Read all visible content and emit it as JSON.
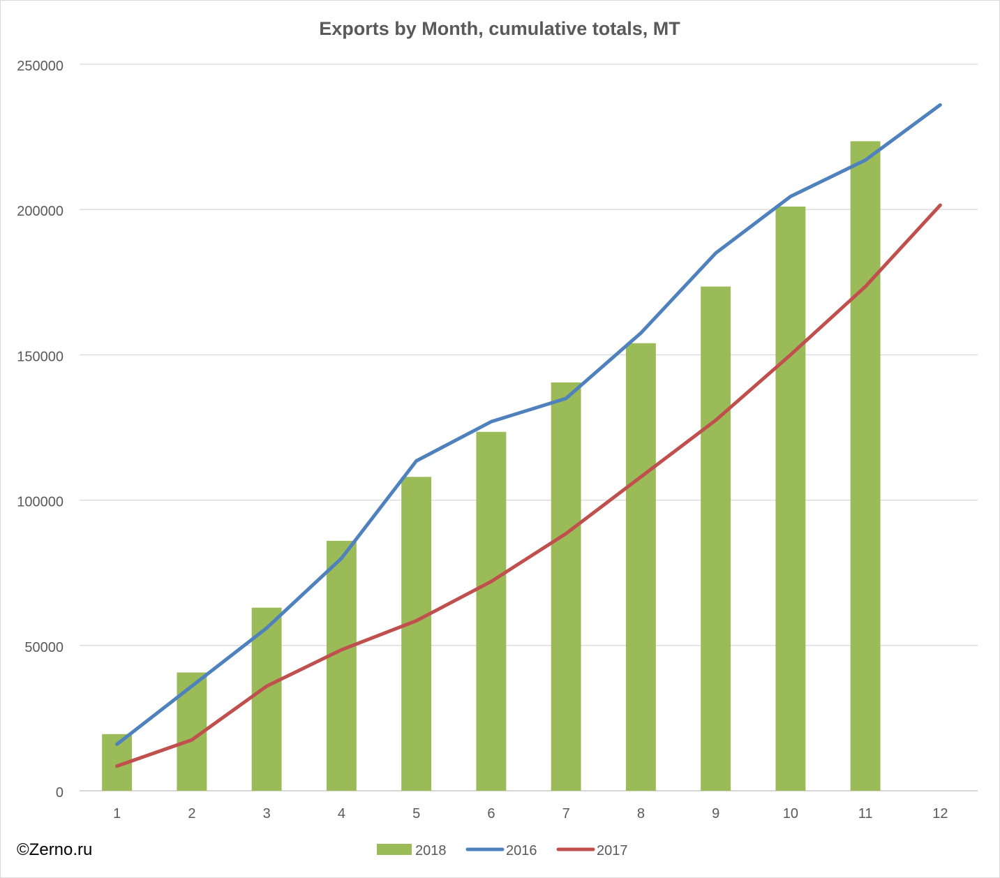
{
  "chart_data": {
    "type": "bar+line",
    "title": "Exports by Month, cumulative totals, MT",
    "xlabel": "",
    "ylabel": "",
    "ylim": [
      0,
      250000
    ],
    "yticks": [
      0,
      50000,
      100000,
      150000,
      200000,
      250000
    ],
    "ytick_labels": [
      "0",
      "50000",
      "100000",
      "150000",
      "200000",
      "250000"
    ],
    "categories": [
      "1",
      "2",
      "3",
      "4",
      "5",
      "6",
      "7",
      "8",
      "9",
      "10",
      "11",
      "12"
    ],
    "grid": "horizontal",
    "legend_position": "bottom",
    "series": [
      {
        "name": "2018",
        "type": "bar",
        "color": "#9bbb59",
        "values": [
          19500,
          40700,
          63000,
          86000,
          108000,
          123500,
          140500,
          154000,
          173500,
          201000,
          223500,
          null
        ]
      },
      {
        "name": "2016",
        "type": "line",
        "color": "#4f81bd",
        "values": [
          16000,
          36000,
          56000,
          80000,
          113500,
          127000,
          135000,
          157500,
          185000,
          204500,
          217000,
          236000
        ]
      },
      {
        "name": "2017",
        "type": "line",
        "color": "#c0504d",
        "values": [
          8500,
          17500,
          36000,
          48500,
          58500,
          72000,
          88500,
          108000,
          127500,
          150000,
          173500,
          201500
        ]
      }
    ]
  },
  "watermark": "©Zerno.ru"
}
